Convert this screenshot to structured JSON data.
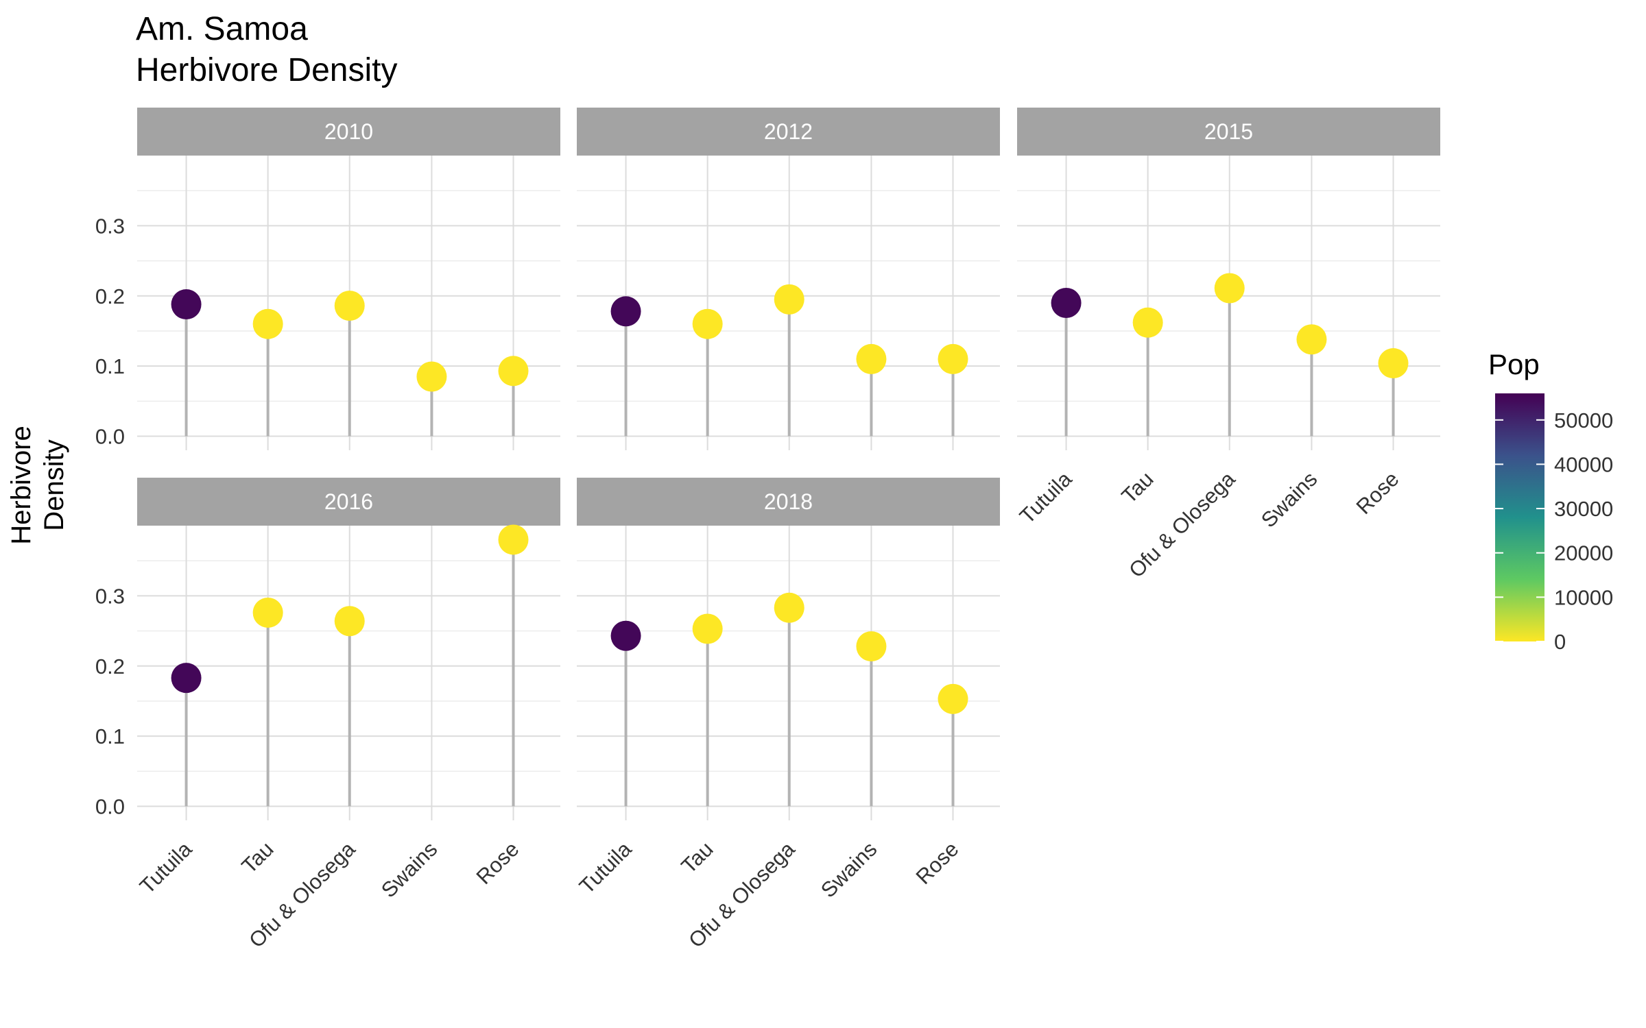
{
  "chart_data": {
    "type": "lollipop",
    "title": [
      "Am. Samoa",
      "Herbivore Density"
    ],
    "ylabel": [
      "Herbivore",
      "Density"
    ],
    "xlabel": "",
    "categories": [
      "Tutuila",
      "Tau",
      "Ofu & Olosega",
      "Swains",
      "Rose"
    ],
    "ylim": [
      -0.02,
      0.4
    ],
    "y_ticks": [
      0.0,
      0.1,
      0.2,
      0.3
    ],
    "y_tick_labels": [
      "0.0",
      "0.1",
      "0.2",
      "0.3"
    ],
    "grid": true,
    "legend": {
      "title": "Pop",
      "type": "colorbar",
      "palette": "viridis",
      "colors": [
        "#fde725",
        "#5ec962",
        "#21918c",
        "#3b528b",
        "#440154"
      ],
      "range": [
        0,
        56000
      ],
      "ticks": [
        0,
        10000,
        20000,
        30000,
        40000,
        50000
      ],
      "tick_labels": [
        "0",
        "10000",
        "20000",
        "30000",
        "40000",
        "50000"
      ],
      "placement": "right"
    },
    "facets": [
      {
        "label": "2010",
        "values": [
          0.188,
          0.16,
          0.186,
          0.085,
          0.093
        ],
        "pop": [
          55000,
          0,
          0,
          0,
          0
        ]
      },
      {
        "label": "2012",
        "values": [
          0.178,
          0.16,
          0.195,
          0.11,
          0.11
        ],
        "pop": [
          55000,
          0,
          0,
          0,
          0
        ]
      },
      {
        "label": "2015",
        "values": [
          0.19,
          0.162,
          0.211,
          0.138,
          0.104
        ],
        "pop": [
          55000,
          0,
          0,
          0,
          0
        ]
      },
      {
        "label": "2016",
        "values": [
          0.183,
          0.276,
          0.264,
          null,
          0.38
        ],
        "pop": [
          55000,
          0,
          0,
          null,
          0
        ]
      },
      {
        "label": "2018",
        "values": [
          0.243,
          0.253,
          0.283,
          0.228,
          0.153
        ],
        "pop": [
          55000,
          0,
          0,
          0,
          0
        ]
      }
    ],
    "colors": {
      "strip_background": "#a3a3a3",
      "strip_text": "#ffffff",
      "stem": "#b3b3b3",
      "grid_major": "#dcdcdc",
      "grid_minor": "#ececec"
    }
  }
}
